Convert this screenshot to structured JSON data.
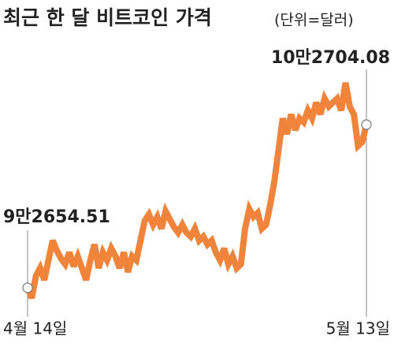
{
  "chart_data": {
    "type": "line",
    "title": "최근 한 달 비트코인 가격",
    "subtitle": "(단위=달러)",
    "color": "#f0843a",
    "categories": [
      "4월 14일",
      null,
      null,
      null,
      null,
      null,
      null,
      null,
      null,
      null,
      null,
      null,
      null,
      null,
      null,
      null,
      null,
      null,
      null,
      null,
      null,
      null,
      null,
      null,
      null,
      null,
      null,
      null,
      null,
      null,
      null,
      null,
      null,
      null,
      null,
      null,
      null,
      null,
      null,
      null,
      null,
      null,
      null,
      null,
      null,
      null,
      null,
      null,
      null,
      null,
      null,
      null,
      null,
      null,
      null,
      null,
      null,
      null,
      null,
      null,
      null,
      null,
      null,
      null,
      null,
      null,
      null,
      null,
      null,
      null,
      null,
      null,
      null,
      null,
      null,
      null,
      null,
      null,
      null,
      null,
      null,
      "5월 13일"
    ],
    "values": [
      92654.51,
      92024,
      93383,
      93869,
      93140,
      94354,
      95568,
      94937,
      94451,
      94111,
      94839,
      93965,
      94597,
      93869,
      93140,
      94354,
      95325,
      93869,
      94839,
      94354,
      95082,
      94597,
      93869,
      94839,
      93626,
      94597,
      94354,
      95568,
      96781,
      97170,
      96538,
      97024,
      96295,
      97364,
      96878,
      96393,
      96053,
      96538,
      96053,
      95811,
      96295,
      95568,
      95811,
      95325,
      95568,
      94839,
      94354,
      95082,
      94111,
      94597,
      93869,
      94111,
      96295,
      97510,
      97024,
      97267,
      96295,
      96538,
      97752,
      99209,
      101151,
      103093,
      102122,
      103336,
      102365,
      103093,
      102851,
      103578,
      103093,
      104064,
      103336,
      104307,
      103821,
      104064,
      104307,
      103578,
      105278,
      103821,
      103336,
      101394,
      101636,
      102704.08
    ],
    "value_labels": [
      "9만2654.51",
      null,
      null,
      null,
      null,
      null,
      null,
      null,
      null,
      null,
      null,
      null,
      null,
      null,
      null,
      null,
      null,
      null,
      null,
      null,
      null,
      null,
      null,
      null,
      null,
      null,
      null,
      null,
      null,
      null,
      null,
      null,
      null,
      null,
      null,
      null,
      null,
      null,
      null,
      null,
      null,
      null,
      null,
      null,
      null,
      null,
      null,
      null,
      null,
      null,
      null,
      null,
      null,
      null,
      null,
      null,
      null,
      null,
      null,
      null,
      null,
      null,
      null,
      null,
      null,
      null,
      null,
      null,
      null,
      null,
      null,
      null,
      null,
      null,
      null,
      null,
      null,
      null,
      null,
      null,
      null,
      "10만2704.08"
    ]
  }
}
